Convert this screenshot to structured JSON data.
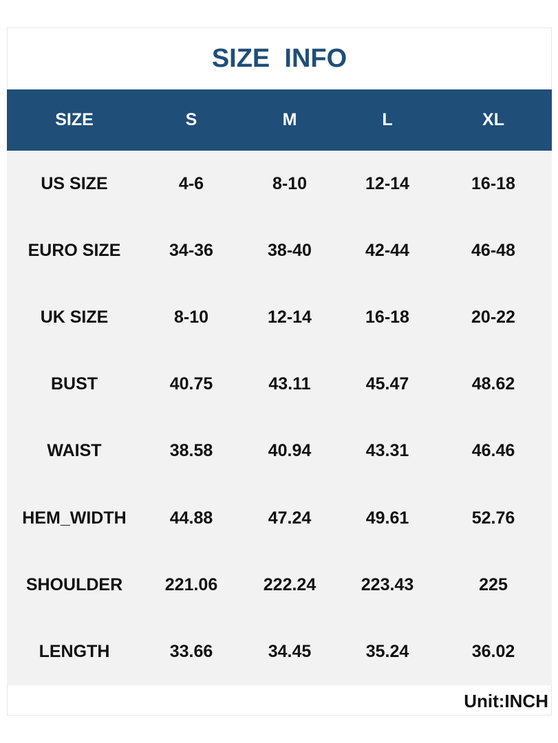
{
  "header": {
    "title": "SIZE  INFO"
  },
  "table": {
    "columns": [
      "SIZE",
      "S",
      "M",
      "L",
      "XL"
    ],
    "rows": [
      [
        "US SIZE",
        "4-6",
        "8-10",
        "12-14",
        "16-18"
      ],
      [
        "EURO SIZE",
        "34-36",
        "38-40",
        "42-44",
        "46-48"
      ],
      [
        "UK SIZE",
        "8-10",
        "12-14",
        "16-18",
        "20-22"
      ],
      [
        "BUST",
        "40.75",
        "43.11",
        "45.47",
        "48.62"
      ],
      [
        "WAIST",
        "38.58",
        "40.94",
        "43.31",
        "46.46"
      ],
      [
        "HEM_WIDTH",
        "44.88",
        "47.24",
        "49.61",
        "52.76"
      ],
      [
        "SHOULDER",
        "221.06",
        "222.24",
        "223.43",
        "225"
      ],
      [
        "LENGTH",
        "33.66",
        "34.45",
        "35.24",
        "36.02"
      ]
    ]
  },
  "footer": {
    "unit": "Unit:INCH"
  }
}
